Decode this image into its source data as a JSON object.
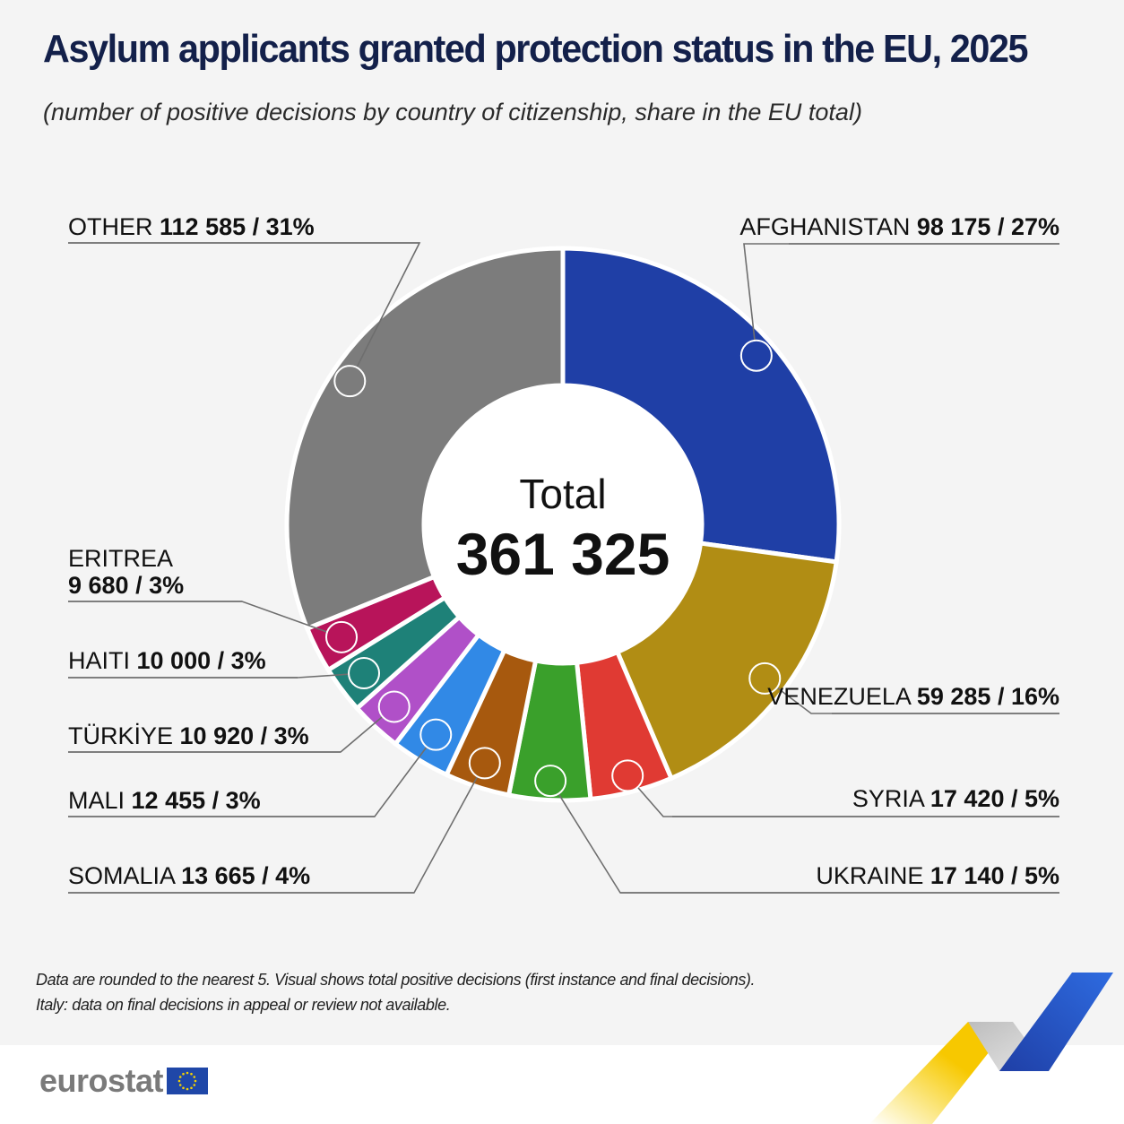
{
  "header": {
    "title": "Asylum applicants granted protection status in the EU, 2025",
    "subtitle": "(number of positive decisions by country of citizenship, share in the EU total)"
  },
  "chart_data": {
    "type": "pie",
    "donut": true,
    "center_label": "Total",
    "center_value": "361 325",
    "total": 361325,
    "slices": [
      {
        "label": "AFGHANISTAN",
        "value": 98175,
        "value_text": "98 175",
        "share_text": "27%",
        "color": "#1f3fa6"
      },
      {
        "label": "VENEZUELA",
        "value": 59285,
        "value_text": "59 285",
        "share_text": "16%",
        "color": "#b18d14"
      },
      {
        "label": "SYRIA",
        "value": 17420,
        "value_text": "17 420",
        "share_text": "5%",
        "color": "#e03a33"
      },
      {
        "label": "UKRAINE",
        "value": 17140,
        "value_text": "17 140",
        "share_text": "5%",
        "color": "#3aa02b"
      },
      {
        "label": "SOMALIA",
        "value": 13665,
        "value_text": "13 665",
        "share_text": "4%",
        "color": "#a7590e"
      },
      {
        "label": "MALI",
        "value": 12455,
        "value_text": "12 455",
        "share_text": "3%",
        "color": "#3189e6"
      },
      {
        "label": "TÜRKİYE",
        "value": 10920,
        "value_text": "10 920",
        "share_text": "3%",
        "color": "#b050c8"
      },
      {
        "label": "HAITI",
        "value": 10000,
        "value_text": "10 000",
        "share_text": "3%",
        "color": "#1e8178"
      },
      {
        "label": "ERITREA",
        "value": 9680,
        "value_text": "9 680",
        "share_text": "3%",
        "color": "#b8145a"
      },
      {
        "label": "OTHER",
        "value": 112585,
        "value_text": "112 585",
        "share_text": "31%",
        "color": "#7c7c7c"
      }
    ]
  },
  "footnotes": {
    "line1": "Data are rounded to the nearest 5. Visual shows total positive decisions (first instance and final decisions).",
    "line2": "Italy: data on final decisions in appeal or review not available."
  },
  "branding": {
    "logo_text": "eurostat",
    "flag_color": "#1f47a8",
    "star_color": "#f5d200"
  }
}
